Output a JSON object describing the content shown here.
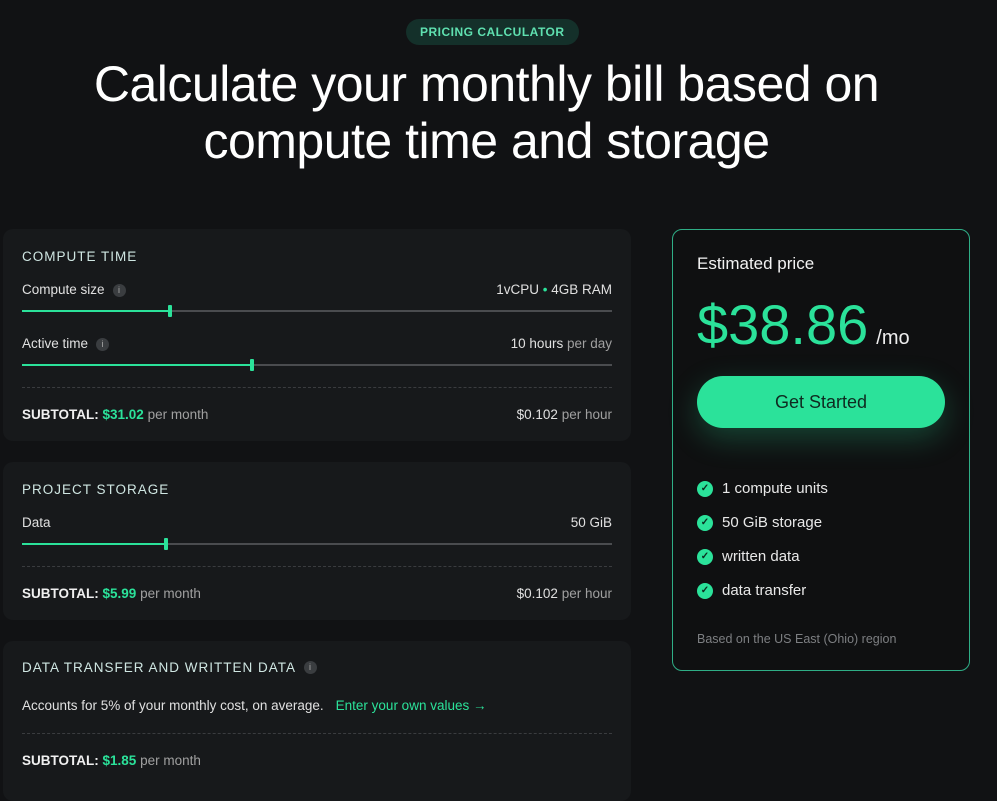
{
  "badge": "PRICING CALCULATOR",
  "title_line1": "Calculate your monthly bill based on",
  "title_line2": "compute time and storage",
  "compute": {
    "heading": "COMPUTE TIME",
    "size_label": "Compute size",
    "size_cpu": "1vCPU",
    "size_sep": "•",
    "size_ram": "4GB RAM",
    "size_fraction": 0.25,
    "active_label": "Active time",
    "active_value": "10 hours",
    "active_unit": "per day",
    "active_fraction": 0.39,
    "subtotal_label": "SUBTOTAL:",
    "subtotal_value": "$31.02",
    "subtotal_unit": "per month",
    "rate_value": "$0.102",
    "rate_unit": "per hour"
  },
  "storage": {
    "heading": "PROJECT STORAGE",
    "data_label": "Data",
    "data_value": "50 GiB",
    "data_fraction": 0.244,
    "subtotal_label": "SUBTOTAL:",
    "subtotal_value": "$5.99",
    "subtotal_unit": "per month",
    "rate_value": "$0.102",
    "rate_unit": "per hour"
  },
  "transfer": {
    "heading": "DATA TRANSFER AND WRITTEN DATA",
    "desc": "Accounts for 5% of your monthly cost, on average.",
    "link": "Enter your own values →",
    "subtotal_label": "SUBTOTAL:",
    "subtotal_value": "$1.85",
    "subtotal_unit": "per month"
  },
  "estimate": {
    "heading": "Estimated price",
    "price": "$38.86",
    "period": "/mo",
    "cta": "Get Started",
    "features": [
      "1 compute units",
      "50 GiB storage",
      "written data",
      "data transfer"
    ],
    "note": "Based on the US East (Ohio) region"
  },
  "colors": {
    "accent": "#2be29a",
    "background": "#111214",
    "card": "#17191b"
  }
}
